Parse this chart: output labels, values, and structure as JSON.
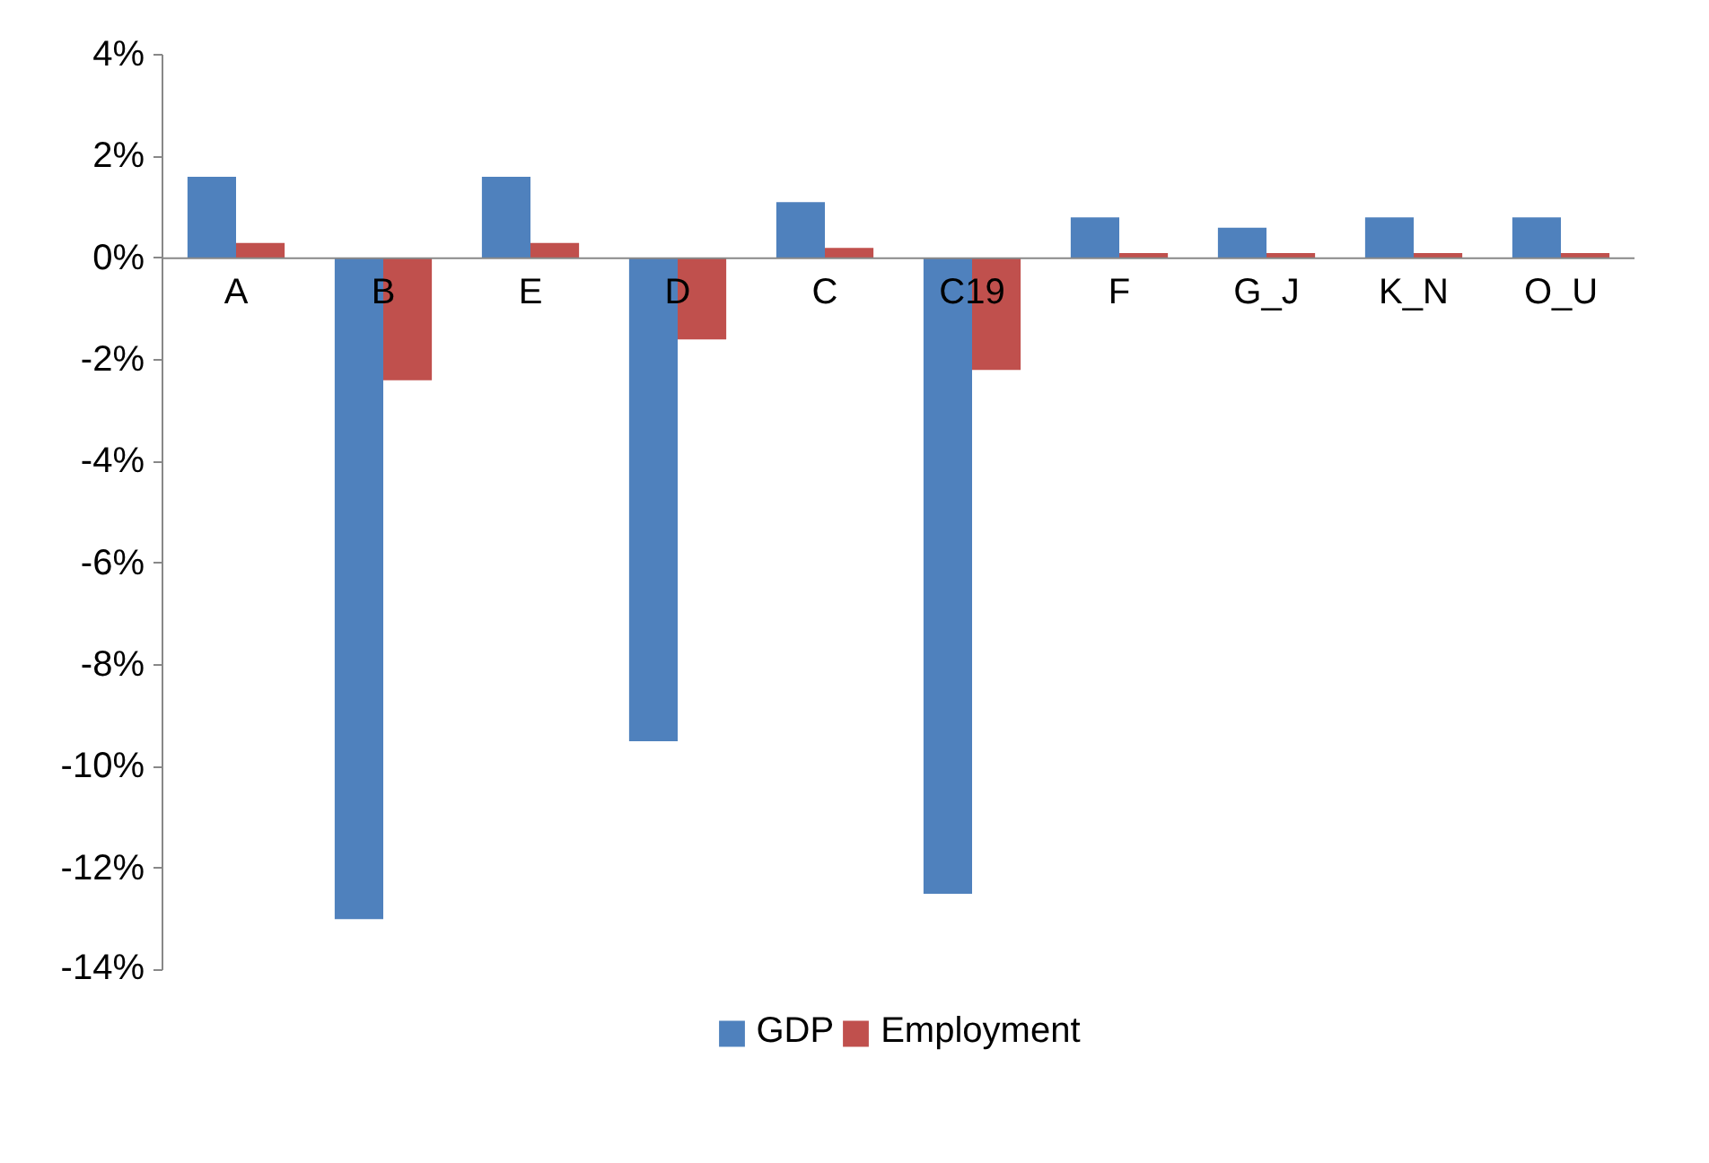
{
  "chart_data": {
    "type": "bar",
    "categories": [
      "A",
      "B",
      "E",
      "D",
      "C",
      "C19",
      "F",
      "G_J",
      "K_N",
      "O_U"
    ],
    "series": [
      {
        "name": "GDP",
        "color": "#4f81bd",
        "values": [
          1.6,
          -13.0,
          1.6,
          -9.5,
          1.1,
          -12.5,
          0.8,
          0.6,
          0.8,
          0.8
        ]
      },
      {
        "name": "Employment",
        "color": "#c0504d",
        "values": [
          0.3,
          -2.4,
          0.3,
          -1.6,
          0.2,
          -2.2,
          0.1,
          0.1,
          0.1,
          0.1
        ]
      }
    ],
    "ylim": [
      -14,
      4
    ],
    "yticks": [
      {
        "value": -14,
        "label": "-14%"
      },
      {
        "value": -12,
        "label": "-12%"
      },
      {
        "value": -10,
        "label": "-10%"
      },
      {
        "value": -8,
        "label": "-8%"
      },
      {
        "value": -6,
        "label": "-6%"
      },
      {
        "value": -4,
        "label": "-4%"
      },
      {
        "value": -2,
        "label": "-2%"
      },
      {
        "value": 0,
        "label": "0%"
      },
      {
        "value": 2,
        "label": "2%"
      },
      {
        "value": 4,
        "label": "4%"
      }
    ],
    "grid": false,
    "legend": "bottom"
  }
}
